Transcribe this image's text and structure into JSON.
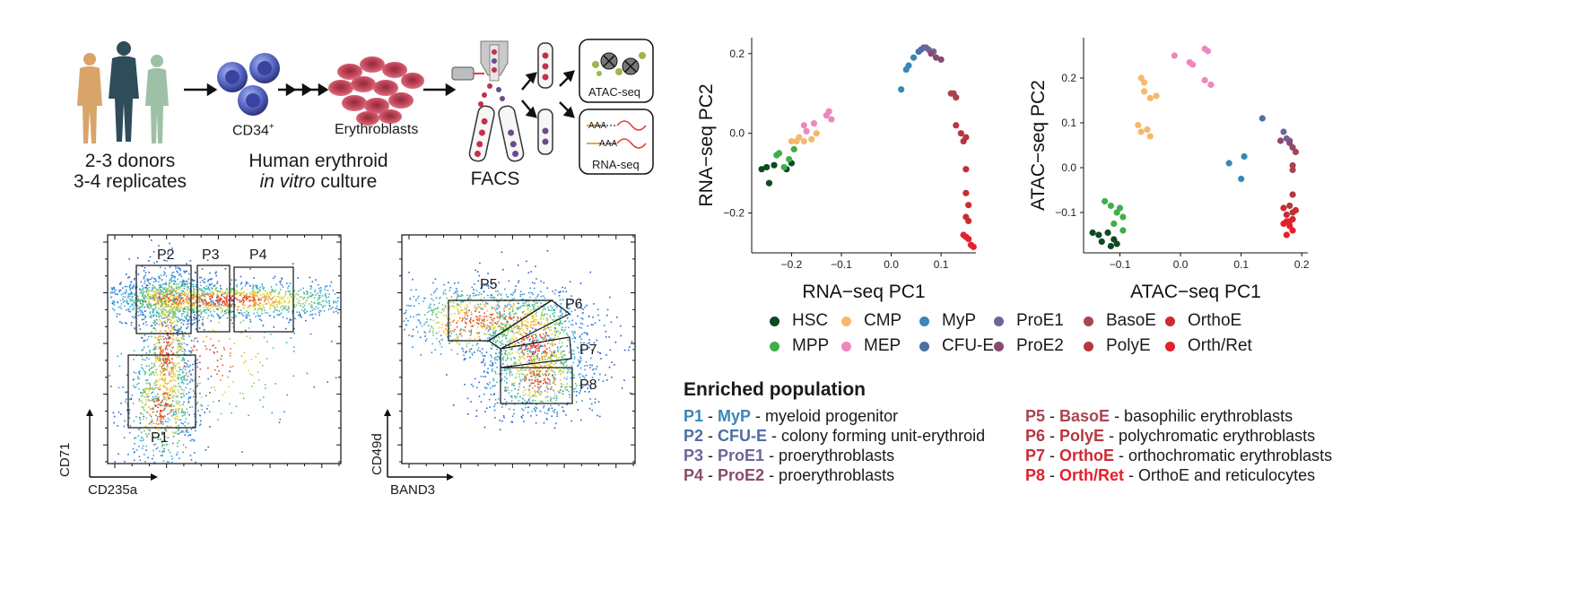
{
  "workflow": {
    "donors_line1": "2-3 donors",
    "donors_line2": "3-4 replicates",
    "cd34_label": "CD34",
    "cd34_sup": "+",
    "erythroblasts_label": "Erythroblasts",
    "culture_line1": "Human erythroid",
    "culture_line2_italic": "in vitro",
    "culture_line2_rest": " culture",
    "facs_label": "FACS",
    "atac_label": "ATAC-seq",
    "rna_label": "RNA-seq",
    "aaa1": "AAA",
    "aaa2": "AAA"
  },
  "facs_plot1": {
    "xlabel": "CD235a",
    "ylabel": "CD71",
    "gates": [
      "P1",
      "P2",
      "P3",
      "P4"
    ]
  },
  "facs_plot2": {
    "xlabel": "BAND3",
    "ylabel": "CD49d",
    "gates": [
      "P5",
      "P6",
      "P7",
      "P8"
    ]
  },
  "pca_colors": {
    "HSC": "#0d4a22",
    "MPP": "#3fae49",
    "CMP": "#f6b96b",
    "MEP": "#ef86bd",
    "MyP": "#3a86b8",
    "CFU-E": "#4e6fa5",
    "ProE1": "#6e6497",
    "ProE2": "#8a4a6b",
    "BasoE": "#a84550",
    "PolyE": "#b5373f",
    "OrthoE": "#cc2b34",
    "Orth/Ret": "#e4202a"
  },
  "chart_data": [
    {
      "type": "scatter",
      "xlabel": "RNA−seq PC1",
      "ylabel": "RNA−seq PC2",
      "xticks": [
        "−0.2",
        "−0.1",
        "0.0",
        "0.1"
      ],
      "xtick_values": [
        -0.2,
        -0.1,
        0.0,
        0.1
      ],
      "yticks": [
        "−0.2",
        "0.0",
        "0.2"
      ],
      "ytick_values": [
        -0.2,
        0.0,
        0.2
      ],
      "xlim": [
        -0.28,
        0.17
      ],
      "ylim": [
        -0.3,
        0.24
      ],
      "series": [
        {
          "name": "HSC",
          "points": [
            [
              -0.26,
              -0.09
            ],
            [
              -0.25,
              -0.085
            ],
            [
              -0.245,
              -0.125
            ],
            [
              -0.235,
              -0.08
            ],
            [
              -0.21,
              -0.09
            ],
            [
              -0.2,
              -0.075
            ]
          ]
        },
        {
          "name": "MPP",
          "points": [
            [
              -0.23,
              -0.055
            ],
            [
              -0.225,
              -0.05
            ],
            [
              -0.215,
              -0.085
            ],
            [
              -0.205,
              -0.065
            ],
            [
              -0.195,
              -0.04
            ]
          ]
        },
        {
          "name": "CMP",
          "points": [
            [
              -0.2,
              -0.02
            ],
            [
              -0.19,
              -0.02
            ],
            [
              -0.185,
              -0.01
            ],
            [
              -0.175,
              -0.02
            ],
            [
              -0.16,
              -0.015
            ],
            [
              -0.15,
              0.0
            ]
          ]
        },
        {
          "name": "MEP",
          "points": [
            [
              -0.175,
              0.02
            ],
            [
              -0.155,
              0.025
            ],
            [
              -0.13,
              0.045
            ],
            [
              -0.125,
              0.055
            ],
            [
              -0.12,
              0.035
            ],
            [
              -0.17,
              0.005
            ]
          ]
        },
        {
          "name": "MyP",
          "points": [
            [
              0.02,
              0.11
            ],
            [
              0.03,
              0.16
            ],
            [
              0.035,
              0.17
            ],
            [
              0.045,
              0.19
            ]
          ]
        },
        {
          "name": "CFU-E",
          "points": [
            [
              0.055,
              0.205
            ],
            [
              0.06,
              0.21
            ],
            [
              0.065,
              0.215
            ]
          ]
        },
        {
          "name": "ProE1",
          "points": [
            [
              0.07,
              0.215
            ],
            [
              0.075,
              0.21
            ],
            [
              0.085,
              0.205
            ]
          ]
        },
        {
          "name": "ProE2",
          "points": [
            [
              0.08,
              0.2
            ],
            [
              0.09,
              0.19
            ],
            [
              0.1,
              0.185
            ]
          ]
        },
        {
          "name": "BasoE",
          "points": [
            [
              0.12,
              0.1
            ],
            [
              0.125,
              0.1
            ],
            [
              0.13,
              0.09
            ]
          ]
        },
        {
          "name": "PolyE",
          "points": [
            [
              0.13,
              0.02
            ],
            [
              0.14,
              0.0
            ],
            [
              0.145,
              -0.02
            ],
            [
              0.15,
              -0.01
            ]
          ]
        },
        {
          "name": "OrthoE",
          "points": [
            [
              0.15,
              -0.09
            ],
            [
              0.15,
              -0.15
            ],
            [
              0.155,
              -0.18
            ],
            [
              0.15,
              -0.21
            ],
            [
              0.155,
              -0.22
            ]
          ]
        },
        {
          "name": "Orth/Ret",
          "points": [
            [
              0.145,
              -0.255
            ],
            [
              0.155,
              -0.265
            ],
            [
              0.16,
              -0.28
            ],
            [
              0.165,
              -0.285
            ],
            [
              0.15,
              -0.26
            ]
          ]
        }
      ]
    },
    {
      "type": "scatter",
      "xlabel": "ATAC−seq PC1",
      "ylabel": "ATAC−seq PC2",
      "xticks": [
        "−0.1",
        "0.0",
        "0.1",
        "0.2"
      ],
      "xtick_values": [
        -0.1,
        0.0,
        0.1,
        0.2
      ],
      "yticks": [
        "−0.1",
        "0.0",
        "0.1",
        "0.2"
      ],
      "ytick_values": [
        -0.1,
        0.0,
        0.1,
        0.2
      ],
      "xlim": [
        -0.16,
        0.21
      ],
      "ylim": [
        -0.19,
        0.29
      ],
      "series": [
        {
          "name": "HSC",
          "points": [
            [
              -0.145,
              -0.145
            ],
            [
              -0.135,
              -0.15
            ],
            [
              -0.13,
              -0.165
            ],
            [
              -0.12,
              -0.145
            ],
            [
              -0.115,
              -0.175
            ],
            [
              -0.11,
              -0.16
            ],
            [
              -0.105,
              -0.17
            ]
          ]
        },
        {
          "name": "MPP",
          "points": [
            [
              -0.125,
              -0.075
            ],
            [
              -0.115,
              -0.085
            ],
            [
              -0.105,
              -0.1
            ],
            [
              -0.1,
              -0.09
            ],
            [
              -0.095,
              -0.11
            ],
            [
              -0.11,
              -0.125
            ],
            [
              -0.095,
              -0.14
            ]
          ]
        },
        {
          "name": "CMP",
          "points": [
            [
              -0.065,
              0.2
            ],
            [
              -0.06,
              0.19
            ],
            [
              -0.06,
              0.17
            ],
            [
              -0.05,
              0.155
            ],
            [
              -0.04,
              0.16
            ],
            [
              -0.07,
              0.095
            ],
            [
              -0.065,
              0.08
            ],
            [
              -0.055,
              0.085
            ],
            [
              -0.05,
              0.07
            ]
          ]
        },
        {
          "name": "MEP",
          "points": [
            [
              -0.01,
              0.25
            ],
            [
              0.015,
              0.235
            ],
            [
              0.02,
              0.23
            ],
            [
              0.04,
              0.265
            ],
            [
              0.045,
              0.26
            ],
            [
              0.04,
              0.195
            ],
            [
              0.05,
              0.185
            ]
          ]
        },
        {
          "name": "MyP",
          "points": [
            [
              0.08,
              0.01
            ],
            [
              0.1,
              -0.025
            ],
            [
              0.105,
              0.025
            ]
          ]
        },
        {
          "name": "CFU-E",
          "points": [
            [
              0.135,
              0.11
            ]
          ]
        },
        {
          "name": "ProE1",
          "points": [
            [
              0.17,
              0.08
            ],
            [
              0.175,
              0.065
            ],
            [
              0.18,
              0.06
            ]
          ]
        },
        {
          "name": "ProE2",
          "points": [
            [
              0.165,
              0.06
            ],
            [
              0.18,
              0.055
            ],
            [
              0.185,
              0.045
            ]
          ]
        },
        {
          "name": "BasoE",
          "points": [
            [
              0.19,
              0.035
            ],
            [
              0.185,
              0.005
            ],
            [
              0.185,
              -0.005
            ]
          ]
        },
        {
          "name": "PolyE",
          "points": [
            [
              0.185,
              -0.06
            ],
            [
              0.18,
              -0.085
            ],
            [
              0.185,
              -0.1
            ]
          ]
        },
        {
          "name": "OrthoE",
          "points": [
            [
              0.17,
              -0.09
            ],
            [
              0.175,
              -0.105
            ],
            [
              0.185,
              -0.115
            ],
            [
              0.19,
              -0.095
            ]
          ]
        },
        {
          "name": "Orth/Ret",
          "points": [
            [
              0.17,
              -0.125
            ],
            [
              0.175,
              -0.12
            ],
            [
              0.18,
              -0.13
            ],
            [
              0.175,
              -0.15
            ],
            [
              0.185,
              -0.14
            ],
            [
              0.18,
              -0.12
            ]
          ]
        }
      ]
    }
  ],
  "legend": {
    "row1": [
      {
        "label": "HSC",
        "key": "HSC"
      },
      {
        "label": "CMP",
        "key": "CMP"
      },
      {
        "label": "MyP",
        "key": "MyP"
      },
      {
        "label": "ProE1",
        "key": "ProE1"
      },
      {
        "label": "BasoE",
        "key": "BasoE"
      },
      {
        "label": "OrthoE",
        "key": "OrthoE"
      }
    ],
    "row2": [
      {
        "label": "MPP",
        "key": "MPP"
      },
      {
        "label": "MEP",
        "key": "MEP"
      },
      {
        "label": "CFU-E",
        "key": "CFU-E"
      },
      {
        "label": "ProE2",
        "key": "ProE2"
      },
      {
        "label": "PolyE",
        "key": "PolyE"
      },
      {
        "label": "Orth/Ret",
        "key": "Orth/Ret"
      }
    ]
  },
  "enriched": {
    "title": "Enriched population",
    "left": [
      {
        "p": "P1",
        "pop": "MyP",
        "desc": " - myeloid progenitor",
        "key": "MyP"
      },
      {
        "p": "P2",
        "pop": "CFU-E",
        "desc": " - colony forming unit-erythroid",
        "key": "CFU-E"
      },
      {
        "p": "P3",
        "pop": "ProE1",
        "desc": " - proerythroblasts",
        "key": "ProE1"
      },
      {
        "p": "P4",
        "pop": "ProE2",
        "desc": " - proerythroblasts",
        "key": "ProE2"
      }
    ],
    "right": [
      {
        "p": "P5",
        "pop": "BasoE",
        "desc": " - basophilic erythroblasts",
        "key": "BasoE"
      },
      {
        "p": "P6",
        "pop": "PolyE",
        "desc": " - polychromatic erythroblasts",
        "key": "PolyE"
      },
      {
        "p": "P7",
        "pop": "OrthoE",
        "desc": " - orthochromatic erythroblasts",
        "key": "OrthoE"
      },
      {
        "p": "P8",
        "pop": "Orth/Ret",
        "desc": " - OrthoE and reticulocytes",
        "key": "Orth/Ret"
      }
    ],
    "dash": " - "
  }
}
